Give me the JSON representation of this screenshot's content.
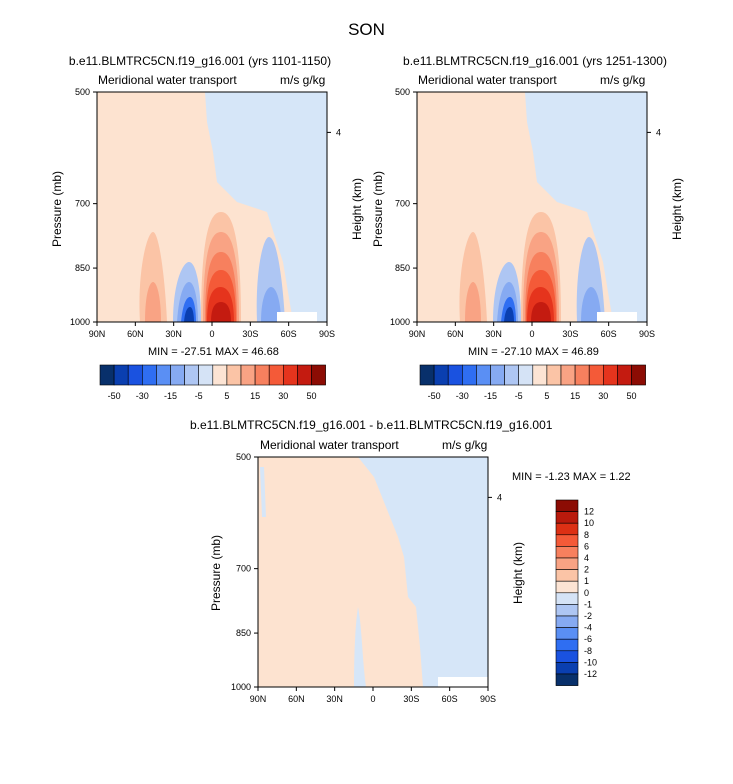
{
  "title": "SON",
  "panels": [
    {
      "title": "b.e11.BLMTRC5CN.f19_g16.001 (yrs 1101-1150)",
      "left_label": "Meridional water transport",
      "right_label": "m/s g/kg",
      "ylabel": "Pressure (mb)",
      "ylabel_right": "Height (km)",
      "stats": "MIN = -27.51   MAX =  46.68"
    },
    {
      "title": "b.e11.BLMTRC5CN.f19_g16.001 (yrs 1251-1300)",
      "left_label": "Meridional water transport",
      "right_label": "m/s g/kg",
      "ylabel": "Pressure (mb)",
      "ylabel_right": "Height (km)",
      "stats": "MIN = -27.10   MAX =  46.89"
    },
    {
      "title": "b.e11.BLMTRC5CN.f19_g16.001 - b.e11.BLMTRC5CN.f19_g16.001",
      "left_label": "Meridional water transport",
      "right_label": "m/s g/kg",
      "ylabel": "Pressure (mb)",
      "ylabel_right": "Height (km)",
      "stats": "MIN =  -1.23   MAX =   1.22"
    }
  ],
  "colors": {
    "top_scale": [
      "#08306b",
      "#0a3fb0",
      "#1a52e0",
      "#2f6ef2",
      "#5a8ff4",
      "#86aaf2",
      "#aec6f3",
      "#d5e3f6",
      "#fce4d4",
      "#fbc4a6",
      "#f9a384",
      "#f7805e",
      "#f45a38",
      "#e5341d",
      "#c41b10",
      "#8c0c04"
    ],
    "bottom_scale": [
      "#8c0c04",
      "#b91a0c",
      "#dd3014",
      "#f45a38",
      "#f7805e",
      "#f9a384",
      "#fbc4a6",
      "#fce4d4",
      "#d5e3f6",
      "#aec6f3",
      "#86aaf2",
      "#5a8ff4",
      "#2f6ef2",
      "#1a52e0",
      "#0a3fb0",
      "#08306b"
    ]
  },
  "chart_data": [
    {
      "type": "heatmap",
      "title": "b.e11.BLMTRC5CN.f19_g16.001 (yrs 1101-1150)",
      "variable": "Meridional water transport",
      "units": "m/s g/kg",
      "xlabel": "",
      "ylabel": "Pressure (mb)",
      "ylabel_right": "Height (km)",
      "x_ticks": [
        "90N",
        "60N",
        "30N",
        "0",
        "30S",
        "60S",
        "90S"
      ],
      "y_ticks": [
        500,
        700,
        850,
        1000
      ],
      "y_right_ticks": [
        4
      ],
      "ylim": [
        1000,
        500
      ],
      "levels": [
        -50,
        -30,
        -15,
        -5,
        5,
        15,
        30,
        50
      ],
      "min": -27.51,
      "max": 46.68
    },
    {
      "type": "heatmap",
      "title": "b.e11.BLMTRC5CN.f19_g16.001 (yrs 1251-1300)",
      "variable": "Meridional water transport",
      "units": "m/s g/kg",
      "xlabel": "",
      "ylabel": "Pressure (mb)",
      "ylabel_right": "Height (km)",
      "x_ticks": [
        "90N",
        "60N",
        "30N",
        "0",
        "30S",
        "60S",
        "90S"
      ],
      "y_ticks": [
        500,
        700,
        850,
        1000
      ],
      "y_right_ticks": [
        4
      ],
      "ylim": [
        1000,
        500
      ],
      "levels": [
        -50,
        -30,
        -15,
        -5,
        5,
        15,
        30,
        50
      ],
      "min": -27.1,
      "max": 46.89
    },
    {
      "type": "heatmap",
      "title": "b.e11.BLMTRC5CN.f19_g16.001 - b.e11.BLMTRC5CN.f19_g16.001",
      "variable": "Meridional water transport",
      "units": "m/s g/kg",
      "xlabel": "",
      "ylabel": "Pressure (mb)",
      "ylabel_right": "Height (km)",
      "x_ticks": [
        "90N",
        "60N",
        "30N",
        "0",
        "30S",
        "60S",
        "90S"
      ],
      "y_ticks": [
        500,
        700,
        850,
        1000
      ],
      "y_right_ticks": [
        4
      ],
      "ylim": [
        1000,
        500
      ],
      "levels": [
        12,
        10,
        8,
        6,
        4,
        2,
        1,
        0,
        -1,
        -2,
        -4,
        -6,
        -8,
        -10,
        -12
      ],
      "min": -1.23,
      "max": 1.22
    }
  ]
}
